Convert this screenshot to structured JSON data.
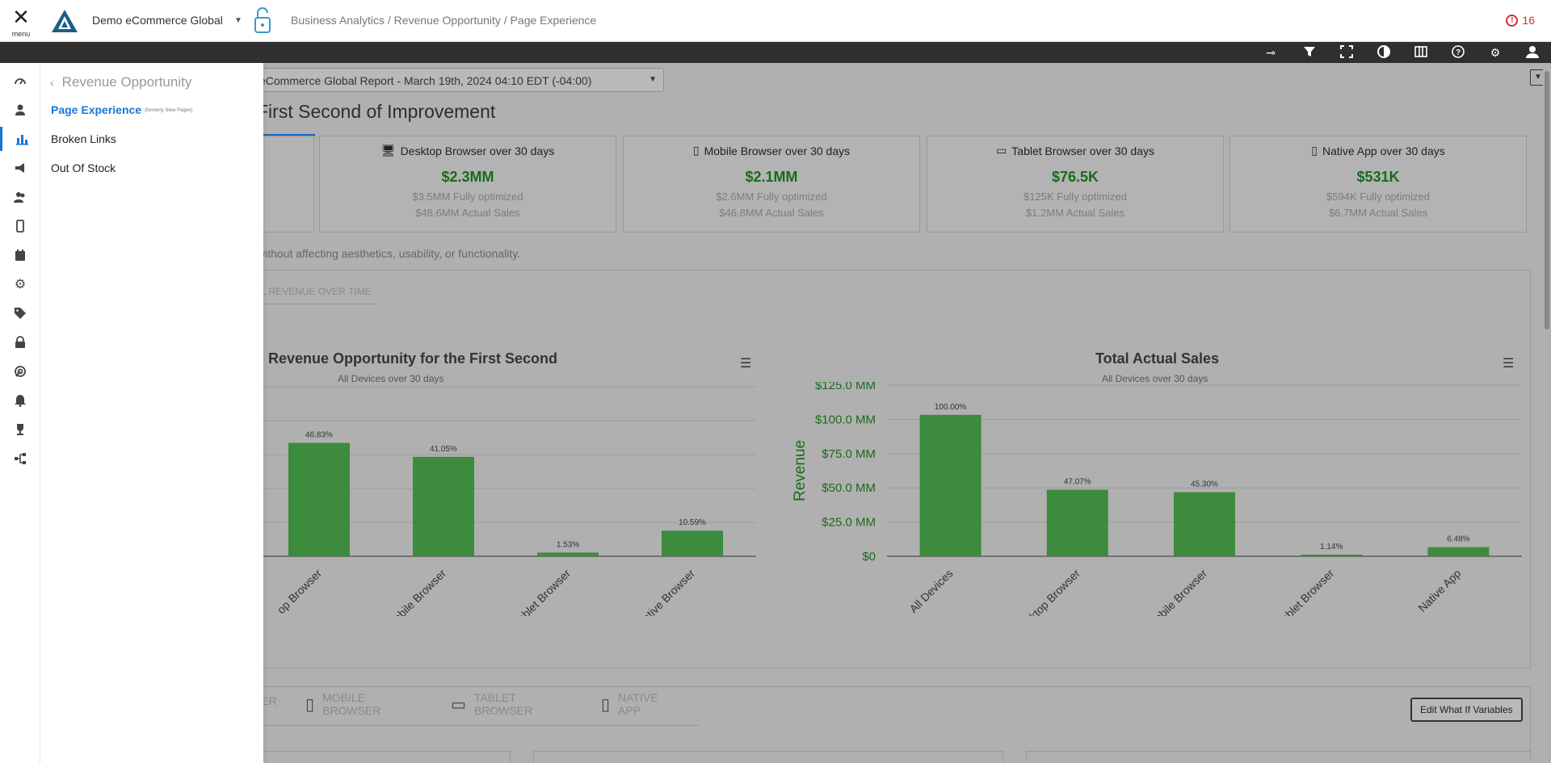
{
  "header": {
    "menu_label": "menu",
    "org_name": "Demo eCommerce Global",
    "breadcrumb": "Business Analytics / Revenue Opportunity / Page Experience",
    "alert_count": "16",
    "accent_color": "#1976d2",
    "alert_color": "#d32f2f"
  },
  "toolbar": {
    "icons": [
      "pin-icon",
      "filter-icon",
      "fullscreen-icon",
      "contrast-icon",
      "columns-icon",
      "help-icon",
      "settings-icon",
      "user-icon"
    ]
  },
  "rail": {
    "items": [
      "dashboard-icon",
      "user-monitor-icon",
      "analytics-icon",
      "megaphone-icon",
      "users-icon",
      "mobile-icon",
      "calendar-icon",
      "gear-cog-icon",
      "tag-icon",
      "lock-icon",
      "radar-icon",
      "bell-icon",
      "trophy-icon",
      "flow-icon"
    ],
    "active": "analytics-icon"
  },
  "flyout": {
    "back_label": "Revenue Opportunity",
    "items": [
      {
        "label": "Page Experience",
        "note": "(formerly Slow Pages)"
      },
      {
        "label": "Broken Links"
      },
      {
        "label": "Out Of Stock"
      }
    ]
  },
  "main": {
    "report": "eCommerce Global Report - March 19th, 2024 04:10 EDT (-04:00)",
    "title": "First Second of Improvement",
    "description": "without affecting aesthetics, usability, or functionality.",
    "tab_label": "AL REVENUE OVER TIME",
    "cards": [
      {
        "title": "Desktop Browser over 30 days",
        "value": "$2.3MM",
        "optimized": "$3.5MM Fully optimized",
        "actual": "$48.6MM Actual Sales"
      },
      {
        "title": "Mobile Browser over 30 days",
        "value": "$2.1MM",
        "optimized": "$2.6MM Fully optimized",
        "actual": "$46.8MM Actual Sales"
      },
      {
        "title": "Tablet Browser over 30 days",
        "value": "$76.5K",
        "optimized": "$125K Fully optimized",
        "actual": "$1.2MM Actual Sales"
      },
      {
        "title": "Native App over 30 days",
        "value": "$531K",
        "optimized": "$594K Fully optimized",
        "actual": "$6.7MM Actual Sales"
      }
    ],
    "device_tabs": [
      "SER",
      "MOBILE BROWSER",
      "TABLET BROWSER",
      "NATIVE APP"
    ],
    "edit_button": "Edit What If Variables"
  },
  "chart_data": [
    {
      "type": "bar",
      "title": "al Revenue Opportunity for the First Second",
      "subtitle": "All Devices over 30 days",
      "categories": [
        "op Browser",
        "Mobile Browser",
        "Tablet Browser",
        "Native Browser"
      ],
      "values": [
        46.83,
        41.05,
        1.53,
        10.59
      ],
      "data_labels": [
        "46.83%",
        "41.05%",
        "1.53%",
        "10.59%"
      ],
      "grid": true
    },
    {
      "type": "bar",
      "title": "Total Actual Sales",
      "subtitle": "All Devices over 30 days",
      "ylabel": "Revenue",
      "y_ticks": [
        "$0",
        "$25.0 MM",
        "$50.0 MM",
        "$75.0 MM",
        "$100.0 MM",
        "$125.0 MM"
      ],
      "ylim": [
        0,
        125
      ],
      "categories": [
        "All Devices",
        "Desktop Browser",
        "Mobile Browser",
        "Tablet Browser",
        "Native App"
      ],
      "values": [
        103.3,
        48.6,
        46.8,
        1.2,
        6.7
      ],
      "data_labels": [
        "100.00%",
        "47.07%",
        "45.30%",
        "1.14%",
        "6.48%"
      ],
      "grid": true,
      "bar_color": "#3a8a3a"
    }
  ]
}
